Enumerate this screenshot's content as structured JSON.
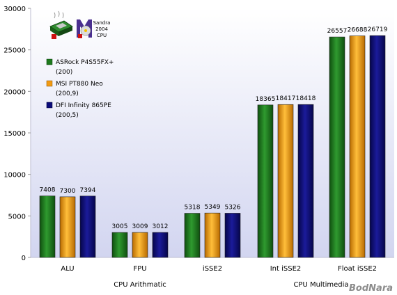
{
  "chart_data": {
    "type": "bar",
    "categories": [
      "ALU",
      "FPU",
      "iSSE2",
      "Int iSSE2",
      "Float iSSE2"
    ],
    "category_groups": [
      {
        "label": "CPU Arithmatic",
        "categories": [
          "ALU",
          "FPU",
          "iSSE2"
        ]
      },
      {
        "label": "CPU Multimedia",
        "categories": [
          "Int iSSE2",
          "Float iSSE2"
        ]
      }
    ],
    "series": [
      {
        "name": "ASRock P4S55FX+",
        "sub": "(200)",
        "color": "#1d7a1d",
        "values": [
          7408,
          3005,
          5318,
          18365,
          26557
        ]
      },
      {
        "name": "MSI PT880 Neo",
        "sub": "(200,9)",
        "color": "#f29a12",
        "values": [
          7300,
          3009,
          5349,
          18417,
          26688
        ]
      },
      {
        "name": "DFI Infinity 865PE",
        "sub": "(200,5)",
        "color": "#0b0b7a",
        "values": [
          7394,
          3012,
          5326,
          18418,
          26719
        ]
      }
    ],
    "ylim": [
      0,
      30000
    ],
    "yticks": [
      0,
      5000,
      10000,
      15000,
      20000,
      25000,
      30000
    ],
    "grid": false,
    "legend_position": "top-left"
  },
  "logo": {
    "line1": "Sandra",
    "line2": "2004",
    "line3": "CPU"
  },
  "watermark": "BodNara",
  "colors": {
    "plot_top": "#ffffff",
    "plot_bottom": "#d6d8f2"
  }
}
